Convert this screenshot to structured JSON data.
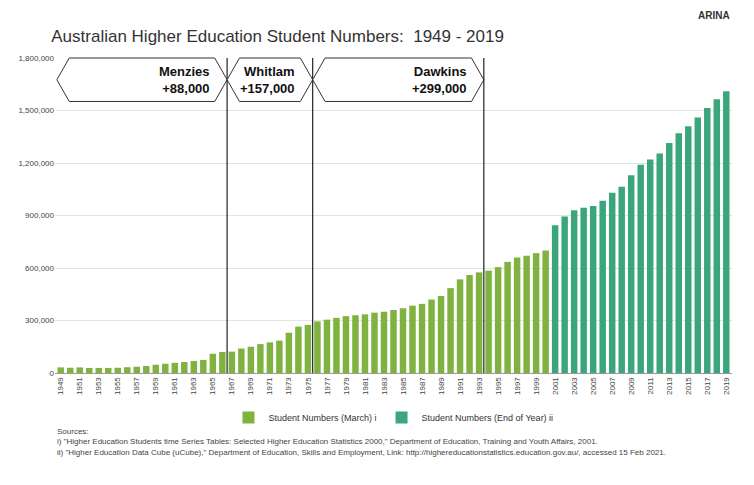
{
  "chart_data": {
    "type": "bar",
    "title": "Australian Higher Education Student Numbers:  1949 - 2019",
    "x": [
      1949,
      1950,
      1951,
      1952,
      1953,
      1954,
      1955,
      1956,
      1957,
      1958,
      1959,
      1960,
      1961,
      1962,
      1963,
      1964,
      1965,
      1966,
      1967,
      1968,
      1969,
      1970,
      1971,
      1972,
      1973,
      1974,
      1975,
      1976,
      1977,
      1978,
      1979,
      1980,
      1981,
      1982,
      1983,
      1984,
      1985,
      1986,
      1987,
      1988,
      1989,
      1990,
      1991,
      1992,
      1993,
      1994,
      1995,
      1996,
      1997,
      1998,
      1999,
      2000,
      2001,
      2002,
      2003,
      2004,
      2005,
      2006,
      2007,
      2008,
      2009,
      2010,
      2011,
      2012,
      2013,
      2014,
      2015,
      2016,
      2017,
      2018,
      2019
    ],
    "series": [
      {
        "name": "Student Numbers (March) i",
        "color": "#7fb23e",
        "values": [
          32000,
          30000,
          32000,
          29000,
          29000,
          29000,
          30000,
          33000,
          36000,
          40000,
          47000,
          53000,
          58000,
          63000,
          69000,
          75000,
          110000,
          120000,
          122000,
          140000,
          150000,
          165000,
          175000,
          185000,
          230000,
          265000,
          275000,
          295000,
          305000,
          315000,
          325000,
          330000,
          335000,
          345000,
          350000,
          360000,
          370000,
          385000,
          395000,
          420000,
          440000,
          485000,
          535000,
          560000,
          575000,
          585000,
          605000,
          635000,
          660000,
          670000,
          685000,
          700000,
          null,
          null,
          null,
          null,
          null,
          null,
          null,
          null,
          null,
          null,
          null,
          null,
          null,
          null,
          null,
          null,
          null,
          null,
          null
        ]
      },
      {
        "name": "Student Numbers (End of Year) ii",
        "color": "#3ba67c",
        "values": [
          null,
          null,
          null,
          null,
          null,
          null,
          null,
          null,
          null,
          null,
          null,
          null,
          null,
          null,
          null,
          null,
          null,
          null,
          null,
          null,
          null,
          null,
          null,
          null,
          null,
          null,
          null,
          null,
          null,
          null,
          null,
          null,
          null,
          null,
          null,
          null,
          null,
          null,
          null,
          null,
          null,
          null,
          null,
          null,
          null,
          null,
          null,
          null,
          null,
          null,
          null,
          null,
          845000,
          895000,
          930000,
          945000,
          955000,
          985000,
          1030000,
          1065000,
          1130000,
          1190000,
          1220000,
          1255000,
          1315000,
          1370000,
          1410000,
          1460000,
          1515000,
          1565000,
          1610000
        ]
      }
    ],
    "xlim": [
      1948.4,
      2019.6
    ],
    "xticks": [
      1949,
      1951,
      1953,
      1955,
      1957,
      1959,
      1961,
      1963,
      1965,
      1967,
      1969,
      1971,
      1973,
      1975,
      1977,
      1979,
      1981,
      1983,
      1985,
      1987,
      1989,
      1991,
      1993,
      1995,
      1997,
      1999,
      2001,
      2003,
      2005,
      2007,
      2009,
      2011,
      2013,
      2015,
      2017,
      2019
    ],
    "ylim": [
      0,
      1800000
    ],
    "yticks": [
      0,
      {
        "value": 300000,
        "label": "300,000"
      },
      {
        "value": 600000,
        "label": "600,000"
      },
      {
        "value": 900000,
        "label": "900,000"
      },
      {
        "value": 1200000,
        "label": "1,200,000"
      },
      {
        "value": 1500000,
        "label": "1,500,000"
      },
      {
        "value": 1800000,
        "label": "1,800,000"
      }
    ],
    "grid": true,
    "legend": "bottom",
    "annotations": [
      {
        "label": "Menzies",
        "text": "+88,000",
        "x": 1966.5
      },
      {
        "label": "Whitlam",
        "text": "+157,000",
        "x": 1975.5
      },
      {
        "label": "Dawkins",
        "text": "+299,000",
        "x": 1993.5
      }
    ],
    "sources": [
      "Sources:",
      "i) \"Higher Education Students time Series Tables: Selected Higher Education Statistics 2000,\" Department of Education, Training and Youth Affairs, 2001.",
      "ii) \"Higher Education Data Cube (uCube),\" Department of Education, Skills and Employment, Link: http://highereducationstatistics.education.gov.au/, accessed 15 Feb 2021."
    ],
    "logo": "ARINA"
  }
}
